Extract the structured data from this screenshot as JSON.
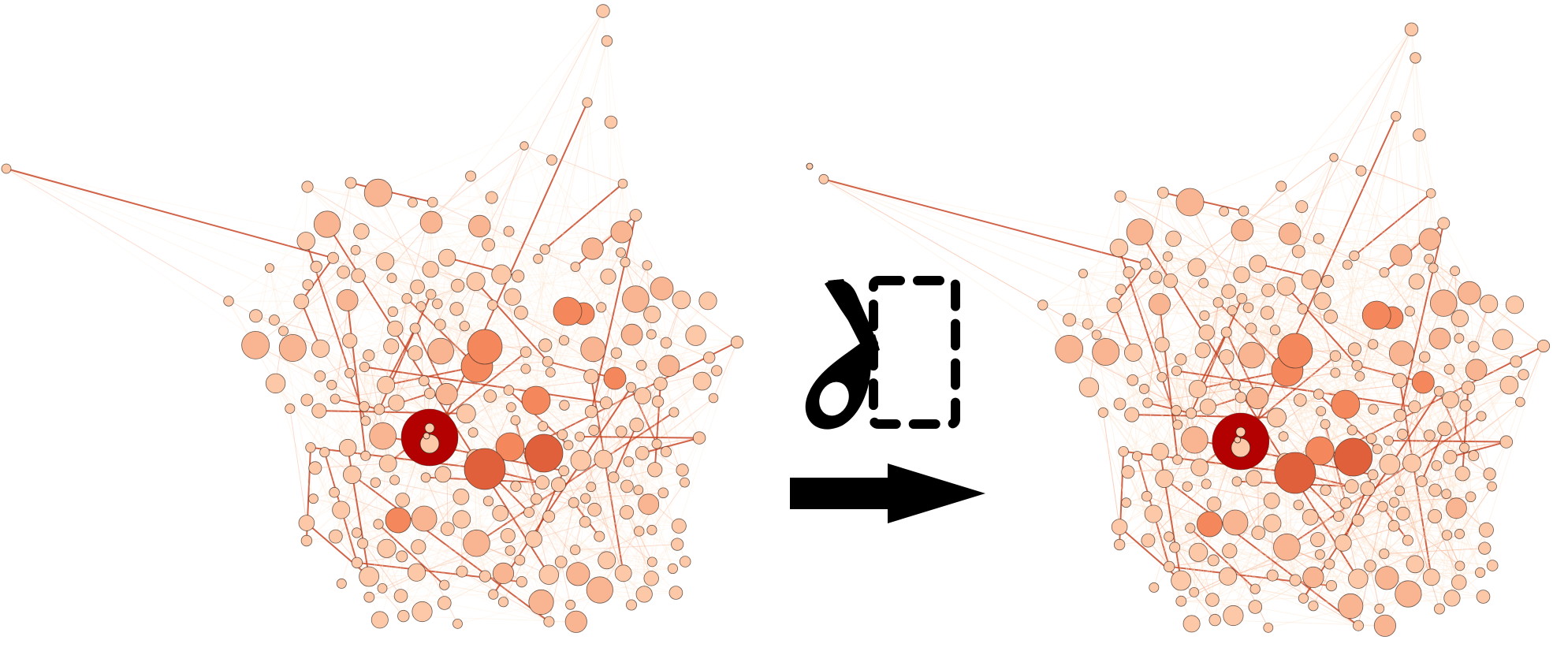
{
  "figure": {
    "description_visible_text": "",
    "transform_icon": "scissors-cut-icon",
    "arrow_icon": "right-arrow-icon",
    "colors": {
      "edge_light": "#fde3cc",
      "edge_mid": "#f6a07a",
      "edge_dark": "#c43c1a",
      "node_light": "#fcc8a8",
      "node_mid": "#f4875b",
      "node_strong": "#e0603c",
      "node_hub": "#b30000",
      "node_stroke": "#3a2a22",
      "icon": "#000000"
    }
  },
  "networks": [
    {
      "id": "before",
      "label": "",
      "seed": 17,
      "edge_count": 1100,
      "edge_opacity": 0.18
    },
    {
      "id": "after",
      "label": "",
      "seed": 17,
      "edge_count": 1100,
      "edge_opacity": 0.32
    }
  ]
}
